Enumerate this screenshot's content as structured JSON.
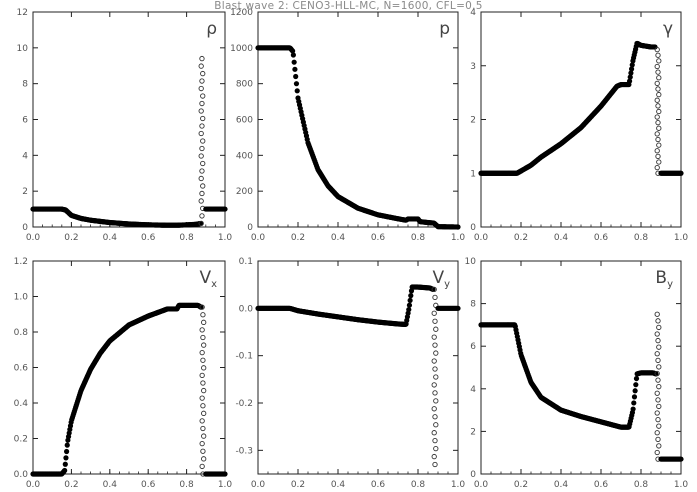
{
  "title": "Blast wave 2: CENO3-HLL-MC, N=1600, CFL=0.5",
  "chart_data": [
    {
      "type": "scatter",
      "label": "ρ",
      "label_sub": "",
      "xlim": [
        0.0,
        1.0
      ],
      "ylim": [
        0,
        12
      ],
      "x_ticks": [
        "0.0",
        "0.2",
        "0.4",
        "0.6",
        "0.8",
        "1.0"
      ],
      "y_ticks": [
        "0",
        "2",
        "4",
        "6",
        "8",
        "10",
        "12"
      ],
      "x_tick_values": [
        0,
        0.2,
        0.4,
        0.6,
        0.8,
        1.0
      ],
      "y_tick_values": [
        0,
        2,
        4,
        6,
        8,
        10,
        12
      ],
      "curve": [
        [
          0.0,
          1.0
        ],
        [
          0.15,
          1.0
        ],
        [
          0.17,
          0.95
        ],
        [
          0.2,
          0.65
        ],
        [
          0.25,
          0.48
        ],
        [
          0.3,
          0.38
        ],
        [
          0.4,
          0.25
        ],
        [
          0.5,
          0.17
        ],
        [
          0.6,
          0.12
        ],
        [
          0.7,
          0.1
        ],
        [
          0.75,
          0.1
        ],
        [
          0.8,
          0.12
        ],
        [
          0.85,
          0.15
        ],
        [
          0.875,
          0.2
        ]
      ],
      "jump": [
        0.88,
        0.2,
        9.4
      ],
      "tail": [
        [
          0.9,
          1.0
        ],
        [
          1.0,
          1.0
        ]
      ]
    },
    {
      "type": "scatter",
      "label": "p",
      "label_sub": "",
      "xlim": [
        0.0,
        1.0
      ],
      "ylim": [
        0,
        1200
      ],
      "x_ticks": [
        "0.0",
        "0.2",
        "0.4",
        "0.6",
        "0.8",
        "1.0"
      ],
      "y_ticks": [
        "0",
        "200",
        "400",
        "600",
        "800",
        "1000",
        "1200"
      ],
      "x_tick_values": [
        0,
        0.2,
        0.4,
        0.6,
        0.8,
        1.0
      ],
      "y_tick_values": [
        0,
        200,
        400,
        600,
        800,
        1000,
        1200
      ],
      "curve": [
        [
          0.0,
          1000
        ],
        [
          0.16,
          1000
        ],
        [
          0.175,
          980
        ],
        [
          0.2,
          720
        ],
        [
          0.25,
          470
        ],
        [
          0.3,
          320
        ],
        [
          0.35,
          230
        ],
        [
          0.4,
          170
        ],
        [
          0.5,
          105
        ],
        [
          0.6,
          68
        ],
        [
          0.7,
          46
        ],
        [
          0.74,
          38
        ],
        [
          0.75,
          45
        ],
        [
          0.8,
          45
        ],
        [
          0.81,
          30
        ],
        [
          0.85,
          25
        ],
        [
          0.88,
          22
        ],
        [
          0.9,
          2
        ],
        [
          1.0,
          0.1
        ]
      ]
    },
    {
      "type": "scatter",
      "label": "γ",
      "label_sub": "",
      "xlim": [
        0.0,
        1.0
      ],
      "ylim": [
        0,
        4
      ],
      "x_ticks": [
        "0.0",
        "0.2",
        "0.4",
        "0.6",
        "0.8",
        "1.0"
      ],
      "y_ticks": [
        "0",
        "1",
        "2",
        "3",
        "4"
      ],
      "x_tick_values": [
        0,
        0.2,
        0.4,
        0.6,
        0.8,
        1.0
      ],
      "y_tick_values": [
        0,
        1,
        2,
        3,
        4
      ],
      "curve": [
        [
          0.0,
          1.0
        ],
        [
          0.18,
          1.0
        ],
        [
          0.25,
          1.15
        ],
        [
          0.3,
          1.3
        ],
        [
          0.4,
          1.55
        ],
        [
          0.5,
          1.85
        ],
        [
          0.6,
          2.25
        ],
        [
          0.68,
          2.62
        ],
        [
          0.7,
          2.65
        ],
        [
          0.74,
          2.65
        ],
        [
          0.76,
          3.1
        ],
        [
          0.78,
          3.42
        ],
        [
          0.8,
          3.38
        ],
        [
          0.85,
          3.35
        ],
        [
          0.87,
          3.35
        ]
      ],
      "jump": [
        0.885,
        3.3,
        1.0
      ],
      "tail": [
        [
          0.9,
          1.0
        ],
        [
          1.0,
          1.0
        ]
      ]
    },
    {
      "type": "scatter",
      "label": "V",
      "label_sub": "x",
      "xlim": [
        0.0,
        1.0
      ],
      "ylim": [
        0,
        1.2
      ],
      "x_ticks": [
        "0.0",
        "0.2",
        "0.4",
        "0.6",
        "0.8",
        "1.0"
      ],
      "y_ticks": [
        "0.0",
        "0.2",
        "0.4",
        "0.6",
        "0.8",
        "1.0",
        "1.2"
      ],
      "x_tick_values": [
        0,
        0.2,
        0.4,
        0.6,
        0.8,
        1.0
      ],
      "y_tick_values": [
        0,
        0.2,
        0.4,
        0.6,
        0.8,
        1.0,
        1.2
      ],
      "curve": [
        [
          0.0,
          0.0
        ],
        [
          0.15,
          0.0
        ],
        [
          0.165,
          0.02
        ],
        [
          0.18,
          0.18
        ],
        [
          0.2,
          0.3
        ],
        [
          0.25,
          0.47
        ],
        [
          0.3,
          0.59
        ],
        [
          0.35,
          0.68
        ],
        [
          0.4,
          0.75
        ],
        [
          0.5,
          0.84
        ],
        [
          0.6,
          0.89
        ],
        [
          0.7,
          0.93
        ],
        [
          0.75,
          0.93
        ],
        [
          0.76,
          0.95
        ],
        [
          0.86,
          0.95
        ],
        [
          0.875,
          0.94
        ]
      ],
      "jump": [
        0.885,
        0.94,
        0.0
      ],
      "tail": [
        [
          0.9,
          0.0
        ],
        [
          1.0,
          0.0
        ]
      ]
    },
    {
      "type": "scatter",
      "label": "V",
      "label_sub": "y",
      "xlim": [
        0.0,
        1.0
      ],
      "ylim": [
        -0.35,
        0.1
      ],
      "x_ticks": [
        "0.0",
        "0.2",
        "0.4",
        "0.6",
        "0.8",
        "1.0"
      ],
      "y_ticks": [
        "-0.3",
        "-0.2",
        "-0.1",
        "0.0",
        "0.1"
      ],
      "x_tick_values": [
        0,
        0.2,
        0.4,
        0.6,
        0.8,
        1.0
      ],
      "y_tick_values": [
        -0.3,
        -0.2,
        -0.1,
        0.0,
        0.1
      ],
      "curve": [
        [
          0.0,
          0.0
        ],
        [
          0.16,
          0.0
        ],
        [
          0.2,
          -0.005
        ],
        [
          0.3,
          -0.012
        ],
        [
          0.4,
          -0.018
        ],
        [
          0.5,
          -0.024
        ],
        [
          0.6,
          -0.029
        ],
        [
          0.7,
          -0.033
        ],
        [
          0.74,
          -0.034
        ],
        [
          0.755,
          0.0
        ],
        [
          0.77,
          0.045
        ],
        [
          0.8,
          0.045
        ],
        [
          0.86,
          0.043
        ],
        [
          0.875,
          0.04
        ]
      ],
      "jump": [
        0.885,
        0.04,
        -0.33
      ],
      "tail": [
        [
          0.9,
          0.0
        ],
        [
          1.0,
          0.0
        ]
      ]
    },
    {
      "type": "scatter",
      "label": "B",
      "label_sub": "y",
      "xlim": [
        0.0,
        1.0
      ],
      "ylim": [
        0,
        10
      ],
      "x_ticks": [
        "0.0",
        "0.2",
        "0.4",
        "0.6",
        "0.8",
        "1.0"
      ],
      "y_ticks": [
        "0",
        "2",
        "4",
        "6",
        "8",
        "10"
      ],
      "x_tick_values": [
        0,
        0.2,
        0.4,
        0.6,
        0.8,
        1.0
      ],
      "y_tick_values": [
        0,
        2,
        4,
        6,
        8,
        10
      ],
      "curve": [
        [
          0.0,
          7.0
        ],
        [
          0.17,
          7.0
        ],
        [
          0.2,
          5.6
        ],
        [
          0.25,
          4.3
        ],
        [
          0.3,
          3.6
        ],
        [
          0.4,
          3.0
        ],
        [
          0.5,
          2.7
        ],
        [
          0.6,
          2.45
        ],
        [
          0.7,
          2.2
        ],
        [
          0.74,
          2.2
        ],
        [
          0.76,
          3.0
        ],
        [
          0.78,
          4.7
        ],
        [
          0.8,
          4.75
        ],
        [
          0.86,
          4.75
        ],
        [
          0.875,
          4.7
        ]
      ],
      "jump": [
        0.885,
        7.5,
        0.7
      ],
      "tail": [
        [
          0.9,
          0.7
        ],
        [
          1.0,
          0.7
        ]
      ]
    }
  ]
}
